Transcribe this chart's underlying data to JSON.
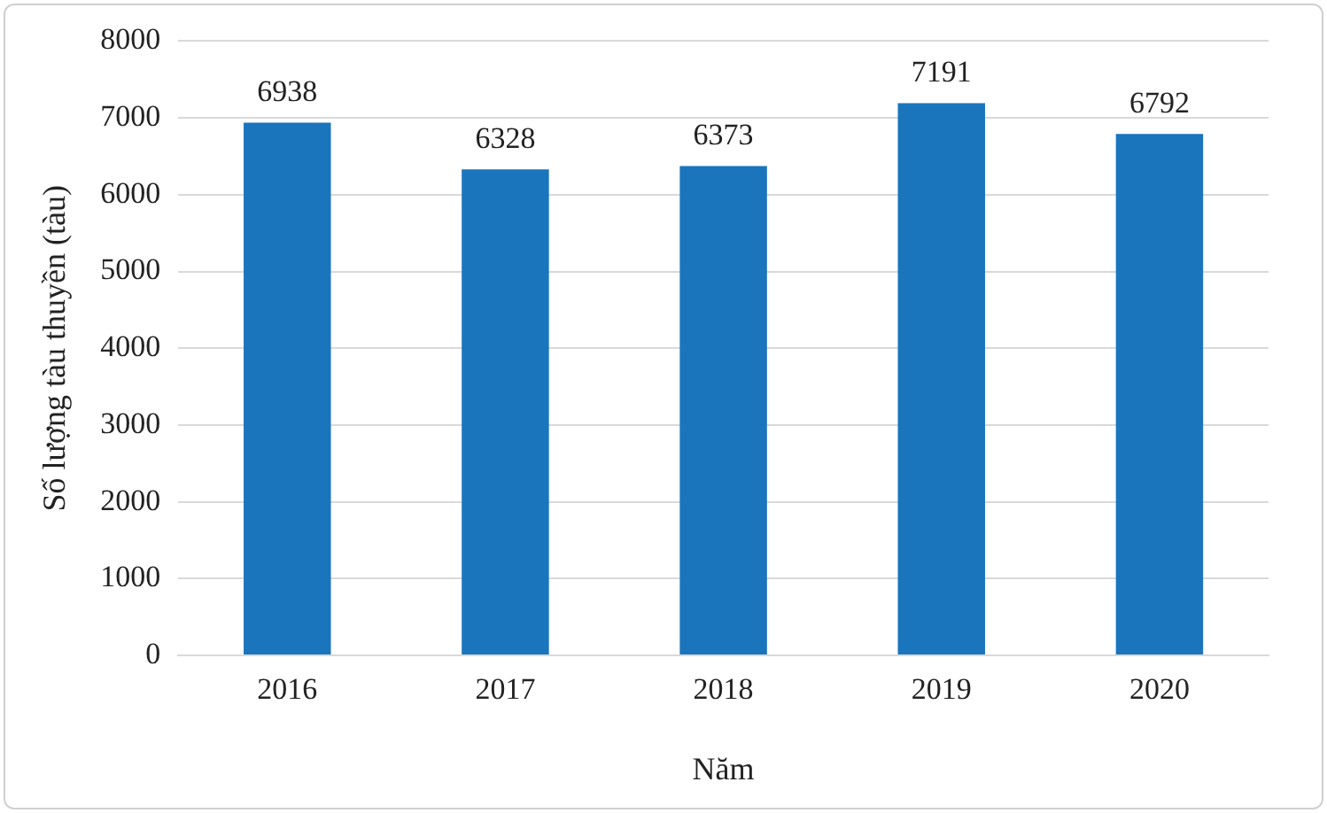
{
  "chart_data": {
    "type": "bar",
    "xlabel": "Năm",
    "ylabel": "Số lượng tàu thuyền (tàu)",
    "categories": [
      "2016",
      "2017",
      "2018",
      "2019",
      "2020"
    ],
    "values": [
      6938,
      6328,
      6373,
      7191,
      6792
    ],
    "color": "#1a75bc",
    "ylim": [
      0,
      8000
    ],
    "yticks": [
      0,
      1000,
      2000,
      3000,
      4000,
      5000,
      6000,
      7000,
      8000
    ],
    "grid": "y",
    "data_labels": true,
    "legend": false
  }
}
